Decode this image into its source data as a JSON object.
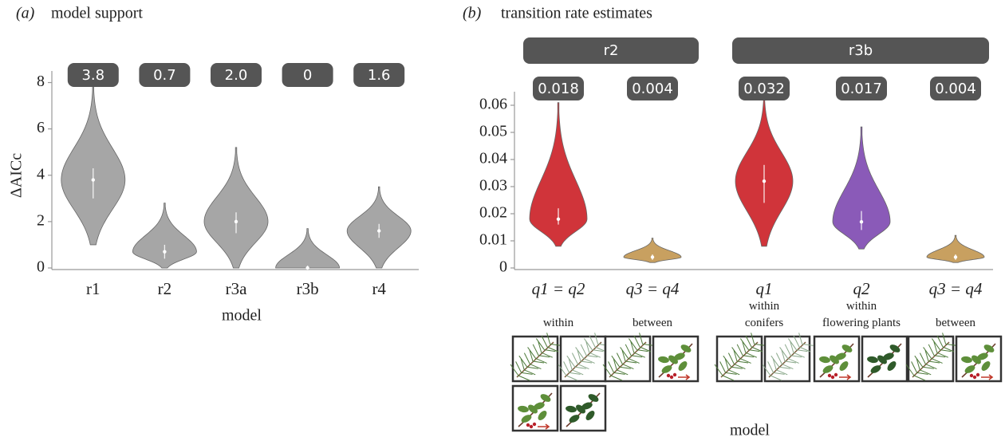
{
  "chart_data": [
    {
      "type": "violin",
      "panel_label": "(a)",
      "title": "model support",
      "ylabel": "ΔAICc",
      "xlabel": "model",
      "categories": [
        "r1",
        "r2",
        "r3a",
        "r3b",
        "r4"
      ],
      "values": [
        3.8,
        0.7,
        2,
        0,
        1.6
      ],
      "value_labels": [
        "3.8",
        "0.7",
        "2.0",
        "0",
        "1.6"
      ],
      "color": "#a6a6a6",
      "violins": [
        {
          "min": 1.0,
          "max": 7.9,
          "q1": 3.0,
          "q3": 4.3
        },
        {
          "min": 0,
          "max": 2.8,
          "q1": 0.4,
          "q3": 1.0
        },
        {
          "min": 0,
          "max": 5.2,
          "q1": 1.5,
          "q3": 2.4
        },
        {
          "min": 0,
          "max": 1.7,
          "q1": 0,
          "q3": 0.1
        },
        {
          "min": 0,
          "max": 3.5,
          "q1": 1.3,
          "q3": 1.9
        }
      ],
      "ylim": [
        0,
        8.5
      ],
      "yticks": [
        0,
        2,
        4,
        6,
        8
      ]
    },
    {
      "type": "violin",
      "panel_label": "(b)",
      "title": "transition rate estimates",
      "xlabel": "model",
      "ylim": [
        0,
        0.065
      ],
      "yticks": [
        0,
        0.01,
        0.02,
        0.03,
        0.04,
        0.05,
        0.06
      ],
      "groups": [
        {
          "label": "r2",
          "categories": [
            "q1 = q2",
            "q3 = q4"
          ],
          "sublabels": [
            "within",
            "between"
          ],
          "values": [
            0.018,
            0.004
          ],
          "value_labels": [
            "0.018",
            "0.004"
          ],
          "colors": [
            "#d0343a",
            "#c8a060"
          ],
          "violins": [
            {
              "min": 0.008,
              "max": 0.061,
              "q1": 0.016,
              "q3": 0.022
            },
            {
              "min": 0.002,
              "max": 0.011,
              "q1": 0.003,
              "q3": 0.005
            }
          ]
        },
        {
          "label": "r3b",
          "categories": [
            "q1",
            "q2",
            "q3 = q4"
          ],
          "sublabels": [
            "within\nconifers",
            "within\nflowering plants",
            "between"
          ],
          "values": [
            0.032,
            0.017,
            0.004
          ],
          "value_labels": [
            "0.032",
            "0.017",
            "0.004"
          ],
          "colors": [
            "#d0343a",
            "#8a5ab8",
            "#c8a060"
          ],
          "violins": [
            {
              "min": 0.008,
              "max": 0.064,
              "q1": 0.024,
              "q3": 0.038
            },
            {
              "min": 0.007,
              "max": 0.052,
              "q1": 0.014,
              "q3": 0.021
            },
            {
              "min": 0.002,
              "max": 0.012,
              "q1": 0.003,
              "q3": 0.005
            }
          ]
        }
      ]
    }
  ]
}
